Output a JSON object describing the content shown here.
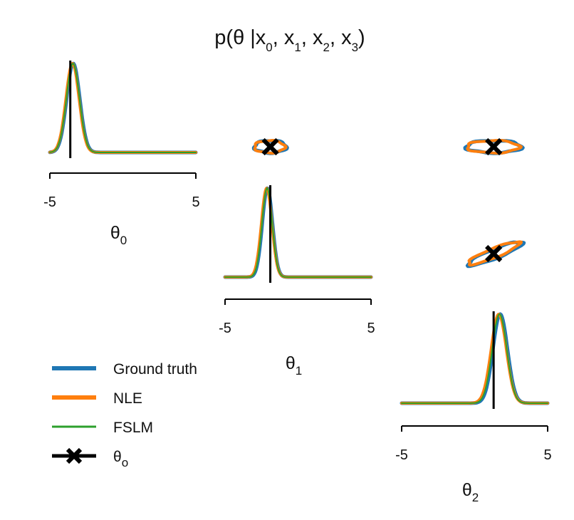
{
  "figure": {
    "title_prefix": "p(θ |x",
    "title_parts": [
      {
        "sub": "0",
        "sep": ", x"
      },
      {
        "sub": "1",
        "sep": ", x"
      },
      {
        "sub": "2",
        "sep": ", x"
      },
      {
        "sub": "3",
        "sep": ")"
      }
    ]
  },
  "chart_data": {
    "type": "pairplot",
    "title": "p(θ |x0, x1, x2, x3)",
    "parameters": [
      {
        "symbol": "θ",
        "subscript": "0",
        "range": [
          -5,
          5
        ],
        "tick_labels": [
          "-5",
          "5"
        ],
        "true_value": -3.6
      },
      {
        "symbol": "θ",
        "subscript": "1",
        "range": [
          -5,
          5
        ],
        "tick_labels": [
          "-5",
          "5"
        ],
        "true_value": -1.9
      },
      {
        "symbol": "θ",
        "subscript": "2",
        "range": [
          -5,
          5
        ],
        "tick_labels": [
          "-5",
          "5"
        ],
        "true_value": 1.3
      }
    ],
    "marginals": [
      {
        "param": 0,
        "series": [
          {
            "name": "Ground truth",
            "mean": -3.4,
            "std": 0.45
          },
          {
            "name": "NLE",
            "mean": -3.45,
            "std": 0.45
          },
          {
            "name": "FSLM",
            "mean": -3.42,
            "std": 0.45
          }
        ]
      },
      {
        "param": 1,
        "series": [
          {
            "name": "Ground truth",
            "mean": -2.1,
            "std": 0.35
          },
          {
            "name": "NLE",
            "mean": -2.15,
            "std": 0.36
          },
          {
            "name": "FSLM",
            "mean": -2.12,
            "std": 0.35
          }
        ]
      },
      {
        "param": 2,
        "series": [
          {
            "name": "Ground truth",
            "mean": 1.75,
            "std": 0.5
          },
          {
            "name": "NLE",
            "mean": 1.65,
            "std": 0.52
          },
          {
            "name": "FSLM",
            "mean": 1.7,
            "std": 0.5
          }
        ]
      }
    ],
    "pairs": [
      {
        "x_param": 1,
        "y_param": 0,
        "true_point": [
          -1.9,
          -3.6
        ],
        "series": [
          {
            "name": "Ground truth",
            "center": [
              -1.9,
              -3.6
            ],
            "half_width": 1.1,
            "half_height": 0.45,
            "tilt": 0
          },
          {
            "name": "NLE",
            "center": [
              -1.95,
              -3.6
            ],
            "half_width": 1.05,
            "half_height": 0.45,
            "tilt": 0
          }
        ]
      },
      {
        "x_param": 2,
        "y_param": 0,
        "true_point": [
          1.3,
          -3.6
        ],
        "series": [
          {
            "name": "Ground truth",
            "center": [
              1.3,
              -3.6
            ],
            "half_width": 1.9,
            "half_height": 0.45,
            "tilt": 0
          },
          {
            "name": "NLE",
            "center": [
              1.25,
              -3.6
            ],
            "half_width": 1.8,
            "half_height": 0.45,
            "tilt": 0
          }
        ]
      },
      {
        "x_param": 2,
        "y_param": 1,
        "true_point": [
          1.3,
          -1.9
        ],
        "series": [
          {
            "name": "Ground truth",
            "center": [
              1.4,
              -1.9
            ],
            "half_width": 2.0,
            "half_height": 0.35,
            "tilt": 22
          },
          {
            "name": "NLE",
            "center": [
              1.3,
              -1.85
            ],
            "half_width": 1.9,
            "half_height": 0.35,
            "tilt": 22
          }
        ]
      }
    ],
    "legend": {
      "placement": "lower-left",
      "entries": [
        {
          "name": "Ground truth",
          "color": "#1f77b4",
          "marker": "line"
        },
        {
          "name": "NLE",
          "color": "#ff7f0e",
          "marker": "line"
        },
        {
          "name": "FSLM",
          "color": "#2ca02c",
          "marker": "line"
        },
        {
          "name": "θ",
          "subscript": "o",
          "color": "#000000",
          "marker": "line-with-x"
        }
      ]
    },
    "colors": {
      "ground_truth": "#1f77b4",
      "nle": "#ff7f0e",
      "fslm": "#2ca02c",
      "true": "#000000"
    }
  }
}
